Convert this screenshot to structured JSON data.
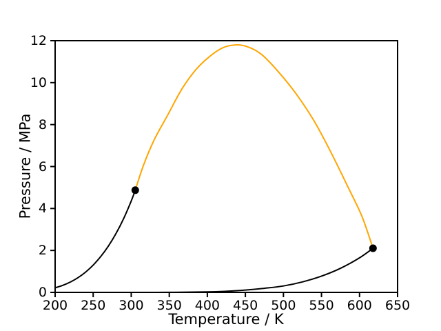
{
  "chart_data": {
    "type": "line",
    "title": "",
    "xlabel": "Temperature / K",
    "ylabel": "Pressure / MPa",
    "xlim": [
      200,
      650
    ],
    "ylim": [
      0,
      12
    ],
    "xticks": [
      200,
      250,
      300,
      350,
      400,
      450,
      500,
      550,
      600,
      650
    ],
    "yticks": [
      0,
      2,
      4,
      6,
      8,
      10,
      12
    ],
    "grid": false,
    "legend": false,
    "background": "#ffffff",
    "axes_color": "#000000",
    "series": [
      {
        "name": "vapor-pressure-curve-light-component",
        "color": "#000000",
        "line_width": 2,
        "x": [
          200,
          210,
          220,
          230,
          240,
          250,
          260,
          270,
          280,
          290,
          300,
          305.3
        ],
        "y": [
          0.217,
          0.334,
          0.492,
          0.7,
          0.967,
          1.301,
          1.712,
          2.21,
          2.806,
          3.516,
          4.357,
          4.872
        ]
      },
      {
        "name": "vapor-pressure-curve-heavy-component",
        "color": "#000000",
        "line_width": 2,
        "x": [
          245,
          300,
          350,
          400,
          425,
          447.3,
          475,
          500,
          525,
          550,
          575,
          600,
          617.7
        ],
        "y": [
          1e-06,
          0.0002,
          0.003,
          0.023,
          0.053,
          0.101,
          0.195,
          0.306,
          0.5,
          0.774,
          1.148,
          1.648,
          2.103
        ]
      },
      {
        "name": "critical-locus",
        "color": "#ffa500",
        "line_width": 2,
        "x": [
          305.3,
          316,
          330,
          348,
          368,
          390,
          417,
          438,
          455,
          472,
          494,
          517,
          540,
          562,
          585,
          603,
          617.7
        ],
        "y": [
          4.872,
          6.05,
          7.26,
          8.46,
          9.78,
          10.82,
          11.6,
          11.8,
          11.68,
          11.32,
          10.49,
          9.45,
          8.19,
          6.71,
          5.01,
          3.64,
          2.103
        ]
      }
    ],
    "points": [
      {
        "name": "critical-point-light",
        "x": 305.3,
        "y": 4.872,
        "color": "#000000",
        "radius": 5.5
      },
      {
        "name": "critical-point-heavy",
        "x": 617.7,
        "y": 2.103,
        "color": "#000000",
        "radius": 5.5
      }
    ]
  }
}
